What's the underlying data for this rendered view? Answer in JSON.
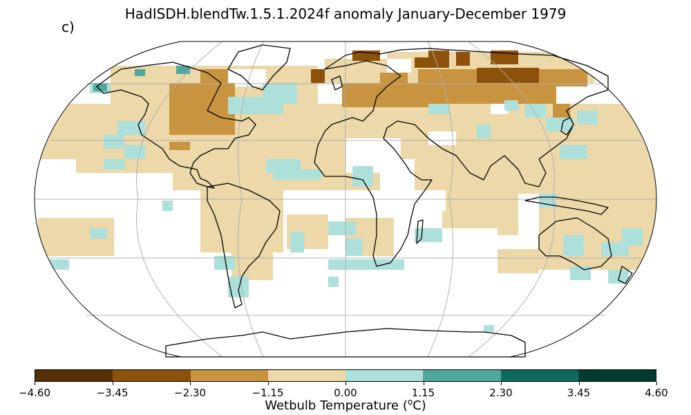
{
  "title": "HadISDH.blendTw.1.5.1.2024f anomaly January-December 1979",
  "panel_label": "c)",
  "colorbar": {
    "label_prefix": "Wetbulb Temperature (",
    "label_sup": "o",
    "label_suffix": "C)",
    "ticks": [
      "−4.60",
      "−3.45",
      "−2.30",
      "−1.15",
      "0.00",
      "1.15",
      "2.30",
      "3.45",
      "4.60"
    ],
    "bins": [
      {
        "range": [
          -4.6,
          -3.45
        ],
        "color": "#543005"
      },
      {
        "range": [
          -3.45,
          -2.3
        ],
        "color": "#8c510a"
      },
      {
        "range": [
          -2.3,
          -1.15
        ],
        "color": "#c8943f"
      },
      {
        "range": [
          -1.15,
          0.0
        ],
        "color": "#ecd8a8"
      },
      {
        "range": [
          0.0,
          1.15
        ],
        "color": "#ade0da"
      },
      {
        "range": [
          1.15,
          2.3
        ],
        "color": "#4ea89d"
      },
      {
        "range": [
          2.3,
          3.45
        ],
        "color": "#0b6b5e"
      },
      {
        "range": [
          3.45,
          4.6
        ],
        "color": "#003c30"
      }
    ]
  },
  "map": {
    "projection": "Robinson",
    "gridlines": true,
    "continents": [
      "North America",
      "South America",
      "Europe",
      "Africa",
      "Asia",
      "Australia",
      "Antarctica",
      "Greenland"
    ]
  }
}
